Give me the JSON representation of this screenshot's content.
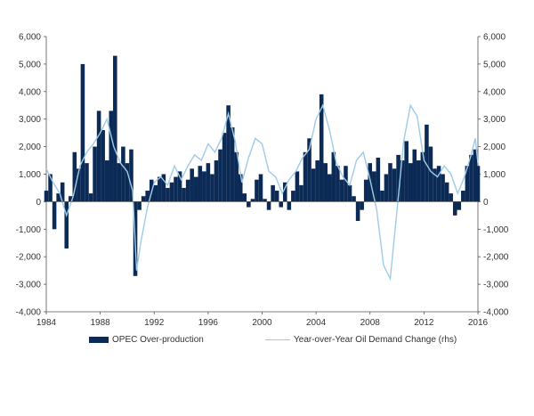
{
  "chart_data": {
    "type": "bar+line",
    "title": "",
    "xlabel": "",
    "ylabel": "",
    "ylim": [
      -4000,
      6000
    ],
    "y_ticks": [
      "-4,000",
      "-3,000",
      "-2,000",
      "-1,000",
      "0",
      "1,000",
      "2,000",
      "3,000",
      "4,000",
      "5,000",
      "6,000"
    ],
    "y2_ticks": [
      "-4,000",
      "-3,000",
      "-2,000",
      "-1,000",
      "0",
      "1,000",
      "2,000",
      "3,000",
      "4,000",
      "5,000",
      "6,000"
    ],
    "x_ticks": [
      "1984",
      "1988",
      "1992",
      "1996",
      "2000",
      "2004",
      "2008",
      "2012",
      "2016"
    ],
    "xlim": [
      1984,
      2016
    ],
    "legend": {
      "placement": "bottom"
    },
    "colors": {
      "bars": "#0b2a55",
      "line": "#9ecbe6",
      "axis": "#555555"
    },
    "series": [
      {
        "name": "OPEC Over-production",
        "kind": "bar",
        "points": [
          [
            1984.0,
            400
          ],
          [
            1984.3,
            1000
          ],
          [
            1984.6,
            -1000
          ],
          [
            1984.9,
            300
          ],
          [
            1985.2,
            700
          ],
          [
            1985.5,
            -1700
          ],
          [
            1985.8,
            200
          ],
          [
            1986.1,
            1800
          ],
          [
            1986.4,
            1200
          ],
          [
            1986.7,
            5000
          ],
          [
            1987.0,
            1400
          ],
          [
            1987.3,
            300
          ],
          [
            1987.6,
            2000
          ],
          [
            1987.9,
            3300
          ],
          [
            1988.2,
            2600
          ],
          [
            1988.5,
            1500
          ],
          [
            1988.8,
            3300
          ],
          [
            1989.1,
            5300
          ],
          [
            1989.4,
            1400
          ],
          [
            1989.7,
            2000
          ],
          [
            1990.0,
            1400
          ],
          [
            1990.3,
            1900
          ],
          [
            1990.6,
            -2700
          ],
          [
            1990.9,
            -300
          ],
          [
            1991.2,
            200
          ],
          [
            1991.5,
            400
          ],
          [
            1991.8,
            800
          ],
          [
            1992.1,
            600
          ],
          [
            1992.4,
            900
          ],
          [
            1992.7,
            1000
          ],
          [
            1993.0,
            500
          ],
          [
            1993.3,
            700
          ],
          [
            1993.6,
            900
          ],
          [
            1993.9,
            1100
          ],
          [
            1994.2,
            500
          ],
          [
            1994.5,
            800
          ],
          [
            1994.8,
            1200
          ],
          [
            1995.1,
            900
          ],
          [
            1995.4,
            1300
          ],
          [
            1995.7,
            1100
          ],
          [
            1996.0,
            1400
          ],
          [
            1996.3,
            1000
          ],
          [
            1996.6,
            1500
          ],
          [
            1996.9,
            1900
          ],
          [
            1997.2,
            2500
          ],
          [
            1997.5,
            3500
          ],
          [
            1997.8,
            2700
          ],
          [
            1998.1,
            1800
          ],
          [
            1998.4,
            1000
          ],
          [
            1998.7,
            300
          ],
          [
            1999.0,
            -200
          ],
          [
            1999.3,
            100
          ],
          [
            1999.6,
            800
          ],
          [
            1999.9,
            1000
          ],
          [
            2000.2,
            100
          ],
          [
            2000.5,
            -300
          ],
          [
            2000.8,
            600
          ],
          [
            2001.1,
            400
          ],
          [
            2001.4,
            -200
          ],
          [
            2001.7,
            700
          ],
          [
            2002.0,
            -300
          ],
          [
            2002.3,
            400
          ],
          [
            2002.6,
            1100
          ],
          [
            2002.9,
            600
          ],
          [
            2003.2,
            1800
          ],
          [
            2003.5,
            2300
          ],
          [
            2003.8,
            1200
          ],
          [
            2004.1,
            1500
          ],
          [
            2004.4,
            3900
          ],
          [
            2004.7,
            1400
          ],
          [
            2005.0,
            1000
          ],
          [
            2005.3,
            1800
          ],
          [
            2005.6,
            1300
          ],
          [
            2005.9,
            800
          ],
          [
            2006.2,
            1300
          ],
          [
            2006.5,
            600
          ],
          [
            2006.8,
            200
          ],
          [
            2007.1,
            -700
          ],
          [
            2007.4,
            -300
          ],
          [
            2007.7,
            800
          ],
          [
            2008.0,
            1400
          ],
          [
            2008.3,
            1100
          ],
          [
            2008.6,
            1600
          ],
          [
            2008.9,
            400
          ],
          [
            2009.2,
            1000
          ],
          [
            2009.5,
            1400
          ],
          [
            2009.8,
            1200
          ],
          [
            2010.1,
            1700
          ],
          [
            2010.4,
            1500
          ],
          [
            2010.7,
            2200
          ],
          [
            2011.0,
            1400
          ],
          [
            2011.3,
            1900
          ],
          [
            2011.6,
            1500
          ],
          [
            2011.9,
            1800
          ],
          [
            2012.2,
            2800
          ],
          [
            2012.5,
            2000
          ],
          [
            2012.8,
            1200
          ],
          [
            2013.1,
            1300
          ],
          [
            2013.4,
            1000
          ],
          [
            2013.7,
            700
          ],
          [
            2014.0,
            300
          ],
          [
            2014.3,
            -500
          ],
          [
            2014.6,
            -300
          ],
          [
            2014.9,
            400
          ],
          [
            2015.2,
            1300
          ],
          [
            2015.5,
            1700
          ],
          [
            2015.8,
            1900
          ],
          [
            2016.0,
            1300
          ]
        ]
      },
      {
        "name": "Year-over-Year Oil Demand Change (rhs)",
        "kind": "line",
        "points": [
          [
            1984.0,
            1200
          ],
          [
            1984.5,
            700
          ],
          [
            1985.0,
            300
          ],
          [
            1985.5,
            -500
          ],
          [
            1986.0,
            200
          ],
          [
            1986.5,
            1300
          ],
          [
            1987.0,
            1800
          ],
          [
            1987.5,
            2100
          ],
          [
            1988.0,
            2500
          ],
          [
            1988.5,
            3000
          ],
          [
            1989.0,
            2000
          ],
          [
            1989.5,
            1400
          ],
          [
            1990.0,
            1100
          ],
          [
            1990.4,
            400
          ],
          [
            1990.7,
            -2500
          ],
          [
            1991.0,
            -1500
          ],
          [
            1991.5,
            -200
          ],
          [
            1992.0,
            700
          ],
          [
            1992.5,
            900
          ],
          [
            1993.0,
            600
          ],
          [
            1993.5,
            1300
          ],
          [
            1994.0,
            800
          ],
          [
            1994.5,
            1300
          ],
          [
            1995.0,
            1700
          ],
          [
            1995.5,
            1500
          ],
          [
            1996.0,
            2100
          ],
          [
            1996.5,
            1800
          ],
          [
            1997.0,
            2300
          ],
          [
            1997.5,
            3200
          ],
          [
            1998.0,
            2200
          ],
          [
            1998.5,
            700
          ],
          [
            1999.0,
            1600
          ],
          [
            1999.5,
            2300
          ],
          [
            2000.0,
            2100
          ],
          [
            2000.5,
            1100
          ],
          [
            2001.0,
            900
          ],
          [
            2001.5,
            300
          ],
          [
            2002.0,
            800
          ],
          [
            2002.5,
            1100
          ],
          [
            2003.0,
            1600
          ],
          [
            2003.5,
            1900
          ],
          [
            2004.0,
            3000
          ],
          [
            2004.5,
            3500
          ],
          [
            2005.0,
            2600
          ],
          [
            2005.5,
            1400
          ],
          [
            2006.0,
            900
          ],
          [
            2006.5,
            600
          ],
          [
            2007.0,
            1500
          ],
          [
            2007.5,
            1800
          ],
          [
            2008.0,
            800
          ],
          [
            2008.5,
            -300
          ],
          [
            2009.0,
            -2300
          ],
          [
            2009.5,
            -2800
          ],
          [
            2010.0,
            -300
          ],
          [
            2010.5,
            2200
          ],
          [
            2011.0,
            3500
          ],
          [
            2011.5,
            3100
          ],
          [
            2012.0,
            1500
          ],
          [
            2012.5,
            1100
          ],
          [
            2013.0,
            900
          ],
          [
            2013.5,
            1300
          ],
          [
            2014.0,
            1000
          ],
          [
            2014.5,
            300
          ],
          [
            2015.0,
            900
          ],
          [
            2015.5,
            1700
          ],
          [
            2015.8,
            2300
          ],
          [
            2016.0,
            1400
          ]
        ]
      }
    ]
  }
}
